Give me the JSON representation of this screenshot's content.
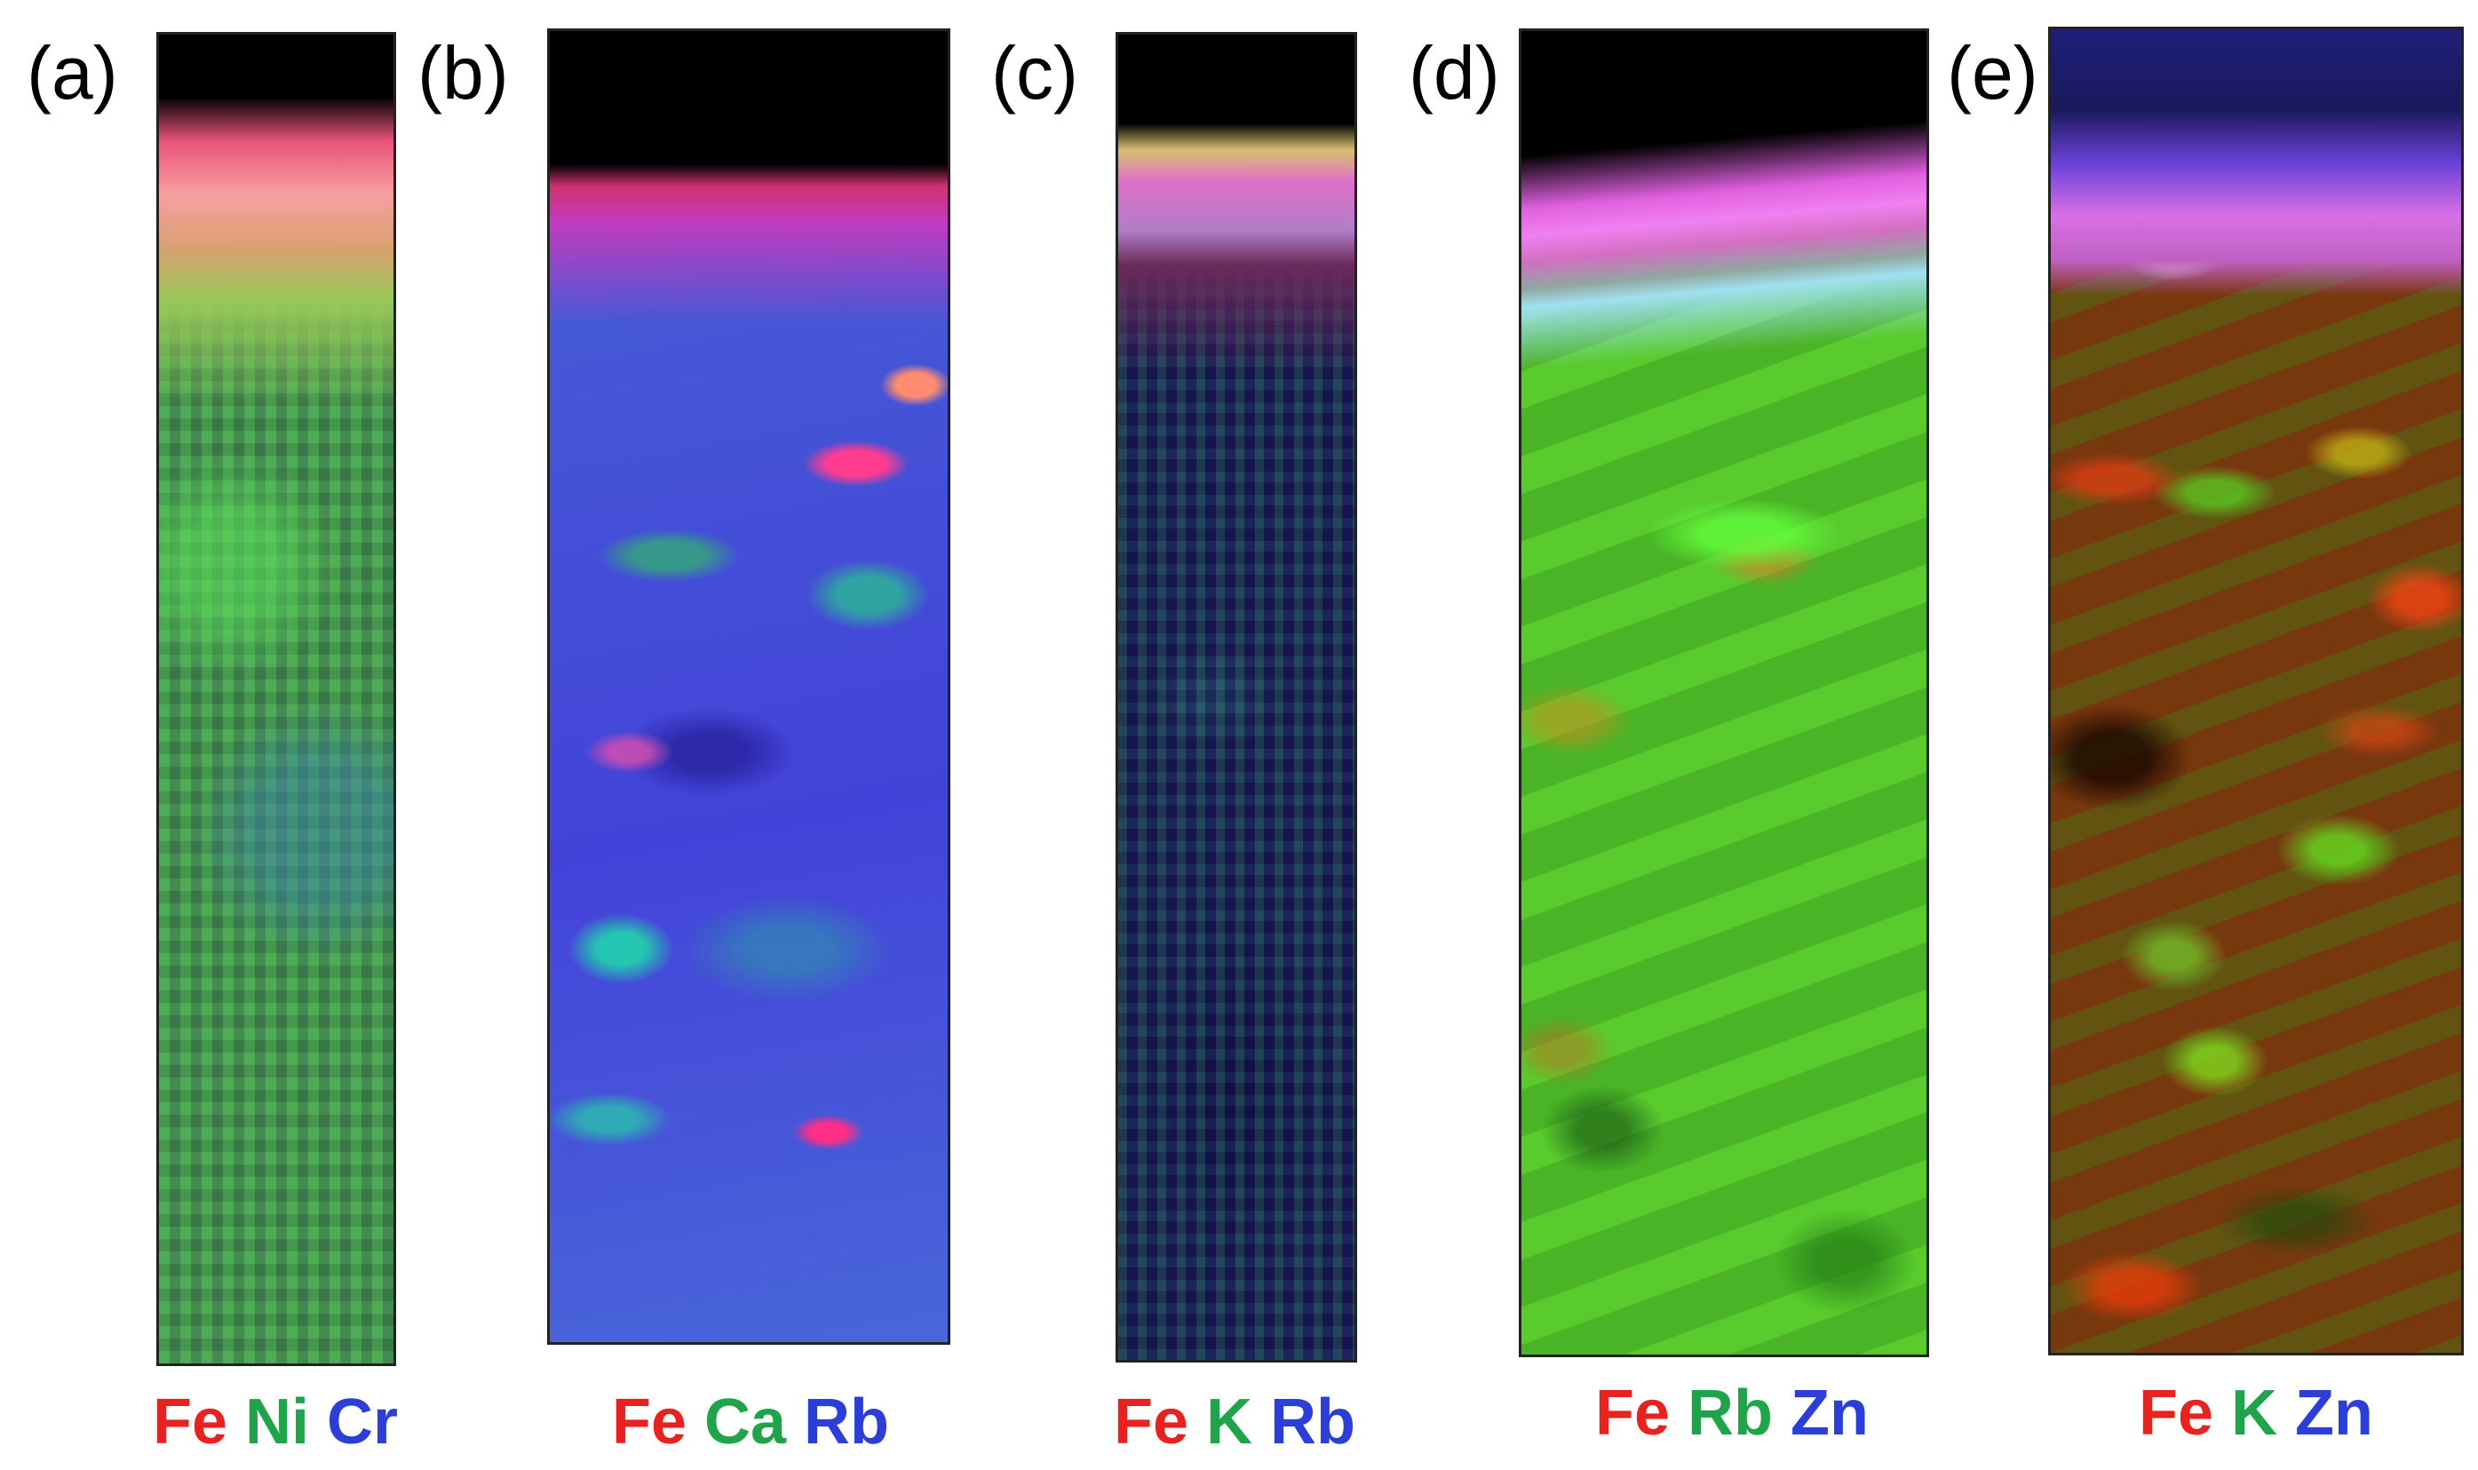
{
  "panels": [
    {
      "label": "(a)",
      "legend": [
        {
          "text": "Fe",
          "color": "#e8231f"
        },
        {
          "text": "Ni",
          "color": "#1fa44a"
        },
        {
          "text": "Cr",
          "color": "#2b3fd8"
        }
      ]
    },
    {
      "label": "(b)",
      "legend": [
        {
          "text": "Fe",
          "color": "#e8231f"
        },
        {
          "text": "Ca",
          "color": "#1fa44a"
        },
        {
          "text": "Rb",
          "color": "#2b3fd8"
        }
      ]
    },
    {
      "label": "(c)",
      "legend": [
        {
          "text": "Fe",
          "color": "#e8231f"
        },
        {
          "text": "K",
          "color": "#1fa44a"
        },
        {
          "text": "Rb",
          "color": "#2b3fd8"
        }
      ]
    },
    {
      "label": "(d)",
      "legend": [
        {
          "text": "Fe",
          "color": "#e8231f"
        },
        {
          "text": "Rb",
          "color": "#1fa44a"
        },
        {
          "text": "Zn",
          "color": "#2b3fd8"
        }
      ]
    },
    {
      "label": "(e)",
      "legend": [
        {
          "text": "Fe",
          "color": "#e8231f"
        },
        {
          "text": "K",
          "color": "#1fa44a"
        },
        {
          "text": "Zn",
          "color": "#2b3fd8"
        }
      ]
    }
  ]
}
